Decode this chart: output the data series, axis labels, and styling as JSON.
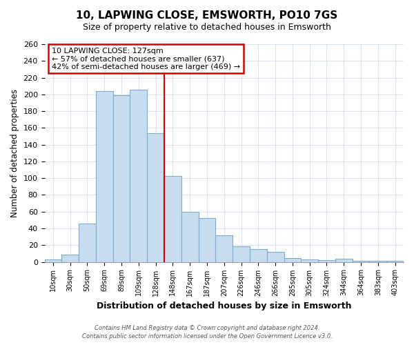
{
  "title": "10, LAPWING CLOSE, EMSWORTH, PO10 7GS",
  "subtitle": "Size of property relative to detached houses in Emsworth",
  "xlabel": "Distribution of detached houses by size in Emsworth",
  "ylabel": "Number of detached properties",
  "categories": [
    "10sqm",
    "30sqm",
    "50sqm",
    "69sqm",
    "89sqm",
    "109sqm",
    "128sqm",
    "148sqm",
    "167sqm",
    "187sqm",
    "207sqm",
    "226sqm",
    "246sqm",
    "266sqm",
    "285sqm",
    "305sqm",
    "324sqm",
    "344sqm",
    "364sqm",
    "383sqm",
    "403sqm"
  ],
  "values": [
    3,
    9,
    46,
    204,
    199,
    206,
    154,
    103,
    60,
    52,
    32,
    19,
    15,
    12,
    5,
    3,
    2,
    4,
    1,
    1,
    1
  ],
  "bar_color": "#c8dcf0",
  "bar_edge_color": "#7aaad0",
  "bar_width": 1.0,
  "vline_x_index": 6,
  "vline_color": "#cc0000",
  "annotation_title": "10 LAPWING CLOSE: 127sqm",
  "annotation_line1": "← 57% of detached houses are smaller (637)",
  "annotation_line2": "42% of semi-detached houses are larger (469) →",
  "annotation_box_color": "white",
  "annotation_box_edge_color": "#cc0000",
  "ylim": [
    0,
    260
  ],
  "yticks": [
    0,
    20,
    40,
    60,
    80,
    100,
    120,
    140,
    160,
    180,
    200,
    220,
    240,
    260
  ],
  "footer_line1": "Contains HM Land Registry data © Crown copyright and database right 2024.",
  "footer_line2": "Contains public sector information licensed under the Open Government Licence v3.0.",
  "bg_color": "#ffffff",
  "plot_bg_color": "#ffffff",
  "grid_color": "#d8e4f0"
}
